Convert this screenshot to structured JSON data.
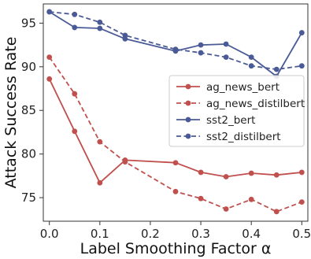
{
  "chart_data": {
    "type": "line",
    "title": "",
    "xlabel": "Label Smoothing Factor α",
    "ylabel": "Attack Success Rate",
    "xlim": [
      -0.012,
      0.512
    ],
    "ylim": [
      72.3,
      97.2
    ],
    "xticks": [
      0.0,
      0.1,
      0.2,
      0.3,
      0.4,
      0.5
    ],
    "xtick_labels": [
      "0.0",
      "0.1",
      "0.2",
      "0.3",
      "0.4",
      "0.5"
    ],
    "yticks": [
      75,
      80,
      85,
      90,
      95
    ],
    "ytick_labels": [
      "75",
      "80",
      "85",
      "90",
      "95"
    ],
    "grid": false,
    "legend_position": "center-right",
    "series": [
      {
        "name": "ag_news_bert",
        "color": "#c0504d",
        "dashed": false,
        "x": [
          0.0,
          0.05,
          0.1,
          0.15,
          0.25,
          0.3,
          0.35,
          0.4,
          0.45,
          0.5
        ],
        "y": [
          88.6,
          82.6,
          76.7,
          79.3,
          79.0,
          77.9,
          77.4,
          77.8,
          77.6,
          77.9
        ]
      },
      {
        "name": "ag_news_distilbert",
        "color": "#c0504d",
        "dashed": true,
        "x": [
          0.0,
          0.05,
          0.1,
          0.15,
          0.25,
          0.3,
          0.35,
          0.4,
          0.45,
          0.5
        ],
        "y": [
          91.1,
          86.9,
          81.4,
          79.1,
          75.7,
          74.9,
          73.7,
          74.8,
          73.4,
          74.5
        ]
      },
      {
        "name": "sst2_bert",
        "color": "#4a5a96",
        "dashed": false,
        "x": [
          0.0,
          0.05,
          0.1,
          0.15,
          0.25,
          0.3,
          0.35,
          0.4,
          0.45,
          0.5
        ],
        "y": [
          96.3,
          94.5,
          94.4,
          93.2,
          91.8,
          92.5,
          92.6,
          91.1,
          88.9,
          93.9
        ]
      },
      {
        "name": "sst2_distilbert",
        "color": "#4a5a96",
        "dashed": true,
        "x": [
          0.0,
          0.05,
          0.1,
          0.15,
          0.25,
          0.3,
          0.35,
          0.4,
          0.45,
          0.5
        ],
        "y": [
          96.3,
          96.0,
          95.1,
          93.6,
          92.0,
          91.6,
          91.1,
          90.1,
          89.7,
          90.1
        ]
      }
    ]
  }
}
